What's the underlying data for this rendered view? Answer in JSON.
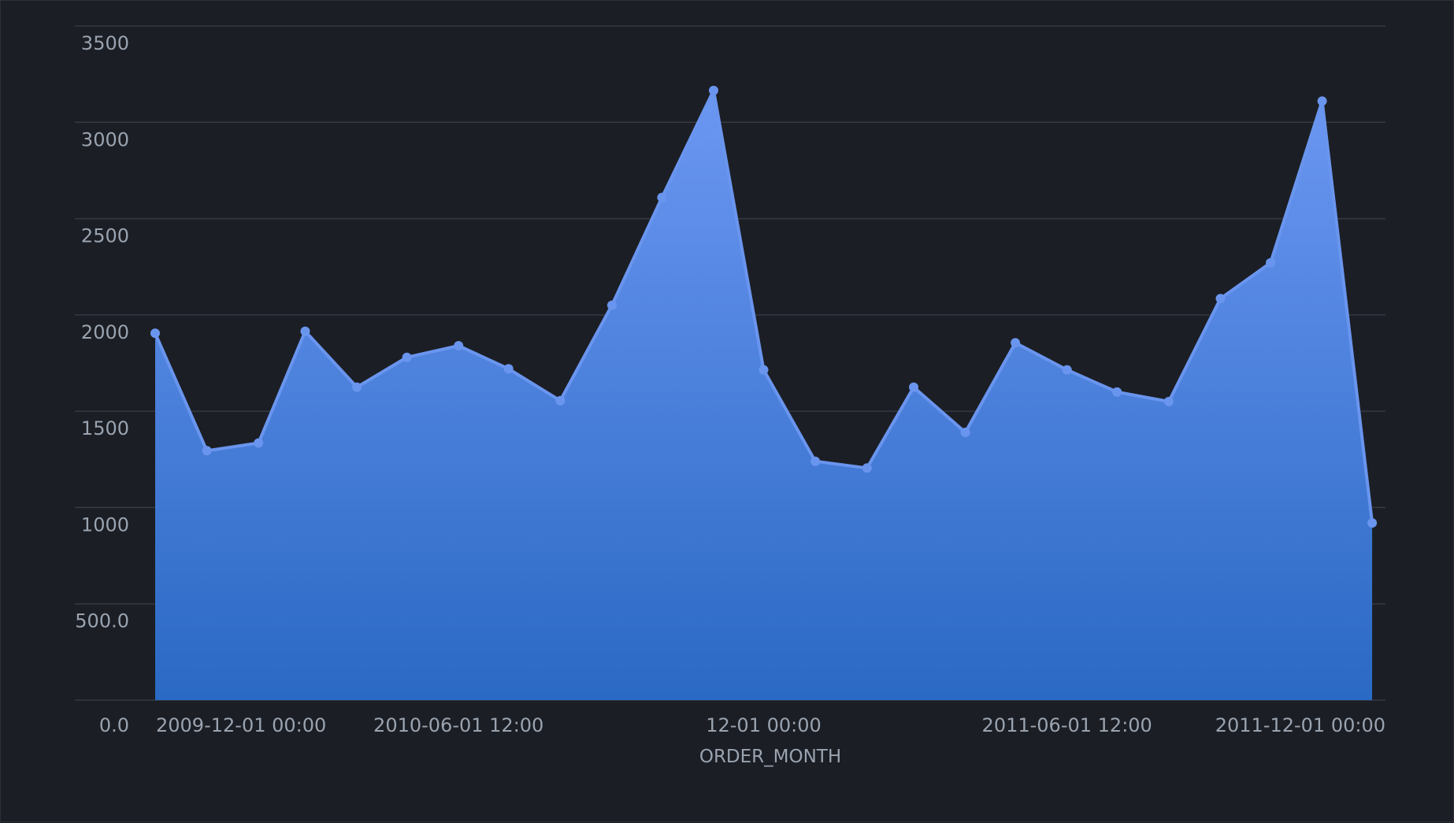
{
  "chart_data": {
    "type": "area",
    "xlabel": "ORDER_MONTH",
    "ylabel": "",
    "ylim": [
      0,
      3500
    ],
    "grid": true,
    "y_ticks": [
      "0.0",
      "500.0",
      "1000",
      "1500",
      "2000",
      "2500",
      "3000",
      "3500"
    ],
    "x_ticks": [
      {
        "label": "2009-12-01 00:00",
        "date": "2009-12-01"
      },
      {
        "label": "2010-06-01 12:00",
        "date": "2010-06-01"
      },
      {
        "label": "12-01 00:00",
        "date": "2010-12-01"
      },
      {
        "label": "2011-06-01 12:00",
        "date": "2011-06-01"
      },
      {
        "label": "2011-12-01 00:00",
        "date": "2011-12-01"
      }
    ],
    "x_range": [
      "2009-12-01",
      "2011-12-09"
    ],
    "x": [
      "2009-12-01",
      "2010-01-01",
      "2010-02-01",
      "2010-03-01",
      "2010-04-01",
      "2010-05-01",
      "2010-06-01",
      "2010-07-01",
      "2010-08-01",
      "2010-09-01",
      "2010-10-01",
      "2010-11-01",
      "2010-12-01",
      "2011-01-01",
      "2011-02-01",
      "2011-03-01",
      "2011-04-01",
      "2011-05-01",
      "2011-06-01",
      "2011-07-01",
      "2011-08-01",
      "2011-09-01",
      "2011-10-01",
      "2011-11-01",
      "2011-12-01"
    ],
    "series": [
      {
        "values": [
          1905,
          1295,
          1335,
          1915,
          1625,
          1780,
          1840,
          1720,
          1555,
          2050,
          2610,
          3165,
          1715,
          1240,
          1205,
          1625,
          1390,
          1855,
          1715,
          1600,
          1550,
          2085,
          2270,
          3110,
          920
        ]
      }
    ],
    "colors": {
      "line": "#6a95ee",
      "fill_top": "#6b97f2",
      "fill_bottom": "#2a69c4",
      "background": "#1b1e24",
      "grid": "#343944",
      "text": "#9aa3b0"
    }
  }
}
